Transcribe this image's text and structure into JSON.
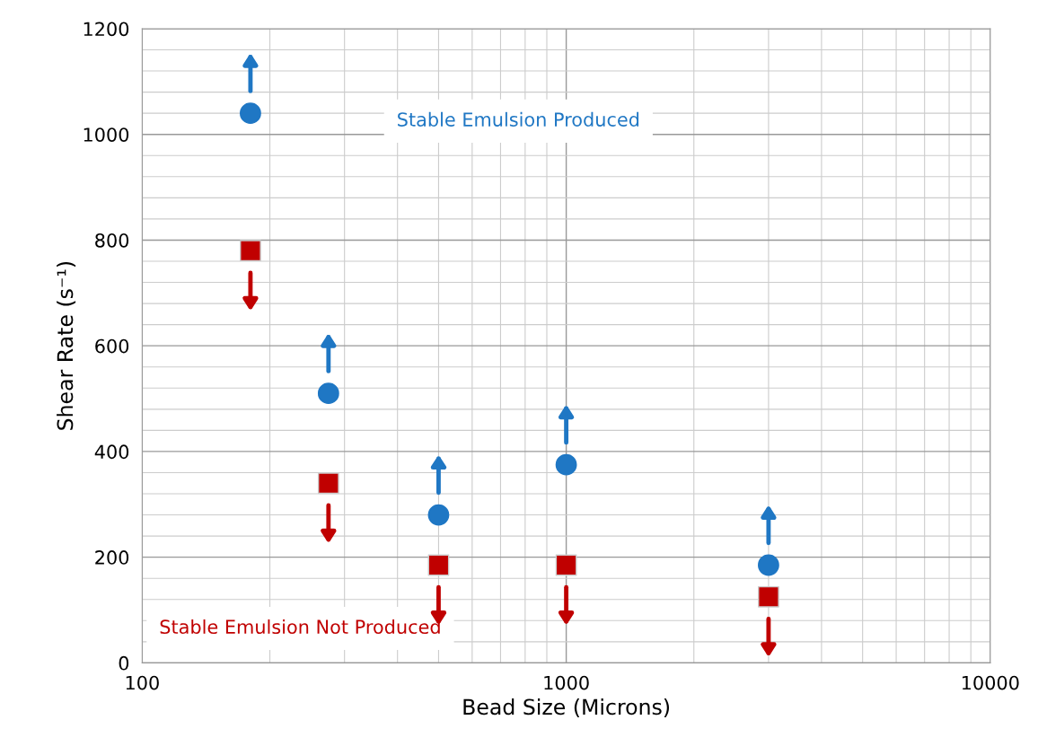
{
  "chart_data": {
    "type": "scatter",
    "xlabel": "Bead Size (Microns)",
    "ylabel": "Shear Rate (s⁻¹)",
    "x": [
      180,
      275,
      500,
      1000,
      3000
    ],
    "series": [
      {
        "color": "#1f77c4",
        "marker": "circle",
        "values": [
          1040,
          510,
          280,
          375,
          185
        ]
      },
      {
        "color": "#c00000",
        "marker": "square",
        "values": [
          780,
          340,
          185,
          185,
          125
        ]
      }
    ],
    "log": "x",
    "xlim": [
      100,
      10000
    ],
    "xticks": [
      100,
      1000,
      10000
    ],
    "ylim": [
      0,
      1200
    ],
    "yticks": [
      0,
      200,
      400,
      600,
      800,
      1000,
      1200
    ],
    "grid": true,
    "annotations": [
      "Stable Emulsion Produced",
      "Stable Emulsion Not Produced"
    ]
  }
}
